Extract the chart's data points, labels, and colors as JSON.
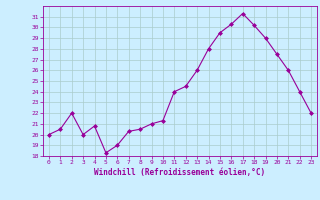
{
  "x": [
    0,
    1,
    2,
    3,
    4,
    5,
    6,
    7,
    8,
    9,
    10,
    11,
    12,
    13,
    14,
    15,
    16,
    17,
    18,
    19,
    20,
    21,
    22,
    23
  ],
  "y": [
    20,
    20.5,
    22,
    20,
    20.8,
    18.3,
    19,
    20.3,
    20.5,
    21,
    21.3,
    24,
    24.5,
    26,
    28,
    29.5,
    30.3,
    31.3,
    30.2,
    29,
    27.5,
    26,
    24,
    22
  ],
  "line_color": "#990099",
  "marker": "D",
  "markersize": 2.0,
  "linewidth": 0.8,
  "bg_color": "#cceeff",
  "grid_color": "#aacccc",
  "xlabel": "Windchill (Refroidissement éolien,°C)",
  "xlabel_color": "#990099",
  "tick_color": "#990099",
  "ylim": [
    18,
    32
  ],
  "xlim": [
    -0.5,
    23.5
  ],
  "yticks": [
    18,
    19,
    20,
    21,
    22,
    23,
    24,
    25,
    26,
    27,
    28,
    29,
    30,
    31
  ],
  "xticks": [
    0,
    1,
    2,
    3,
    4,
    5,
    6,
    7,
    8,
    9,
    10,
    11,
    12,
    13,
    14,
    15,
    16,
    17,
    18,
    19,
    20,
    21,
    22,
    23
  ]
}
